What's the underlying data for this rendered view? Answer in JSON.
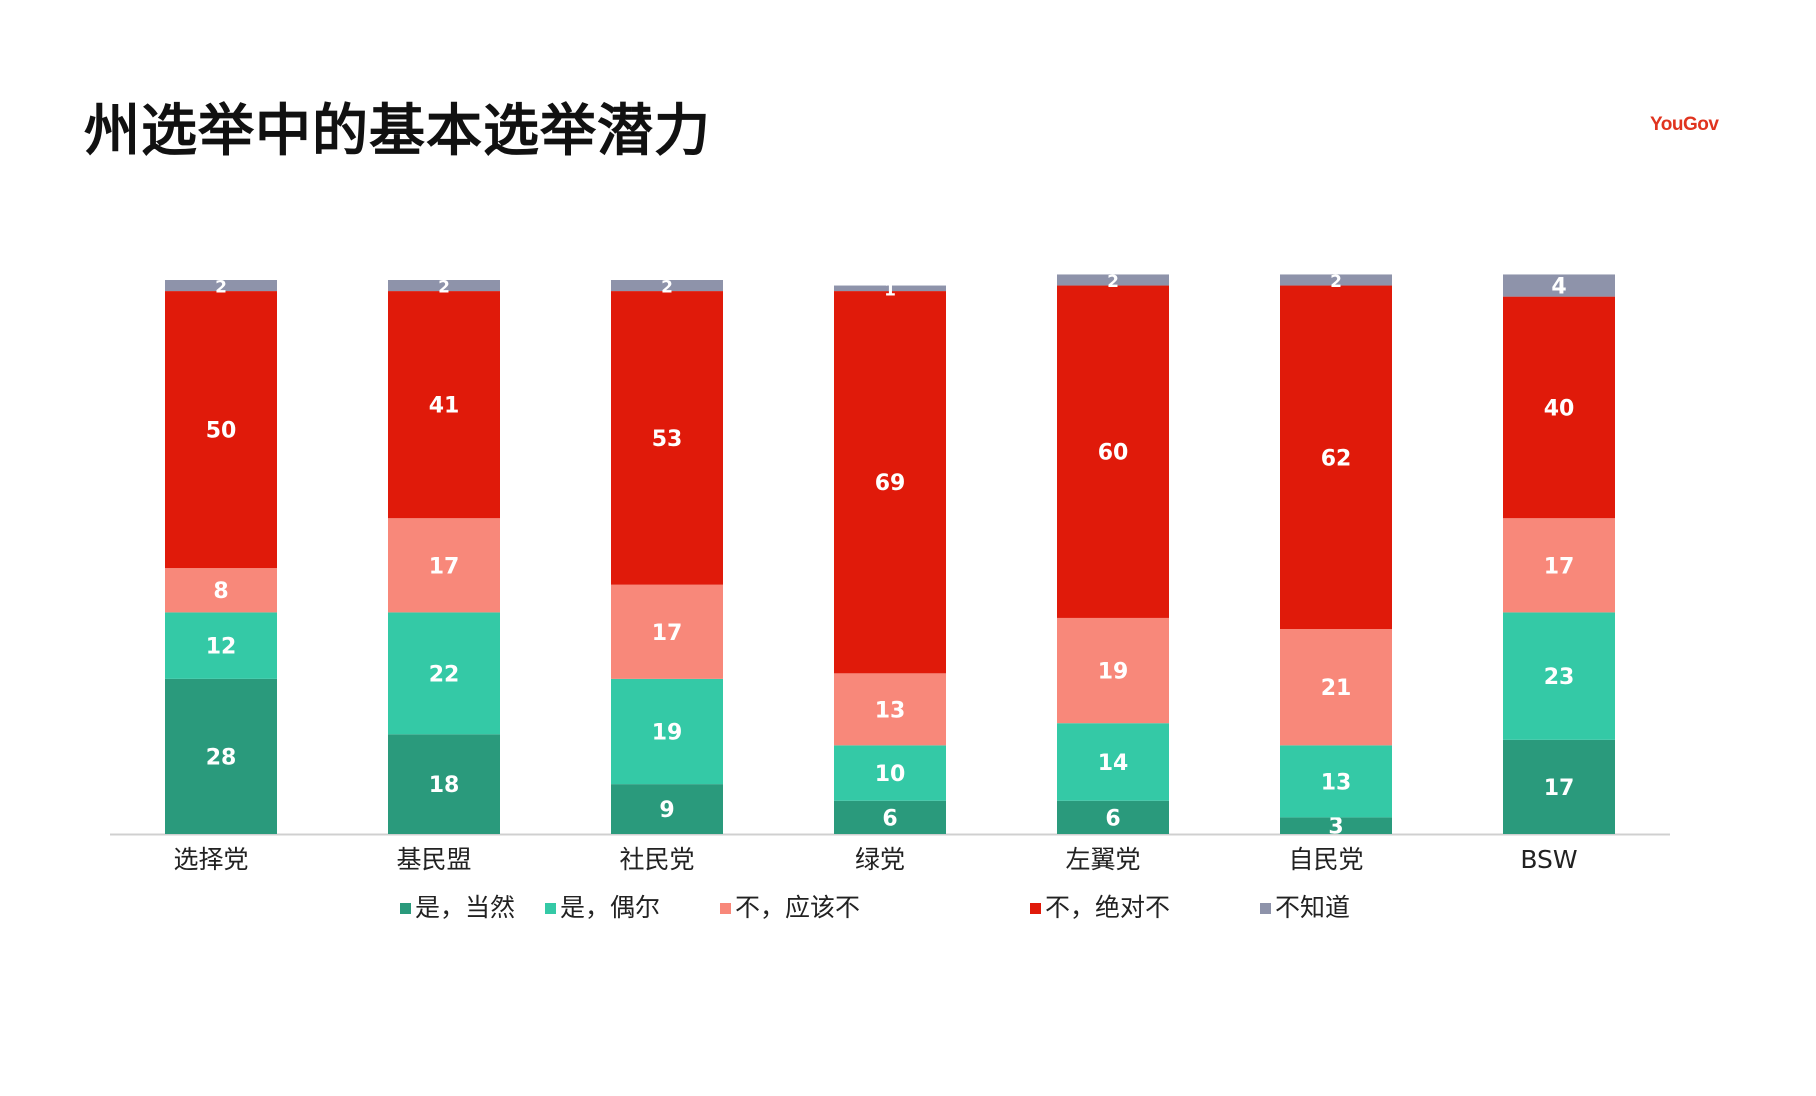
{
  "header": {
    "title": "州选举中的基本选举潜力",
    "brand": "YouGov"
  },
  "colors": {
    "definitely": "#2a9a7c",
    "occasionally": "#34c9a6",
    "should_not": "#f8887a",
    "absolutely_not": "#e01a0a",
    "dont_know": "#8e93aa"
  },
  "chart_data": {
    "type": "bar",
    "stacked": true,
    "categories": [
      "选择党",
      "基民盟",
      "社民党",
      "绿党",
      "左翼党",
      "自民党",
      "BSW"
    ],
    "series": [
      {
        "name": "是，当然",
        "color": "#2a9a7c",
        "values": [
          28,
          18,
          9,
          6,
          6,
          3,
          17
        ]
      },
      {
        "name": "是，偶尔",
        "color": "#34c9a6",
        "values": [
          12,
          22,
          19,
          10,
          14,
          13,
          23
        ]
      },
      {
        "name": "不，应该不",
        "color": "#f8887a",
        "values": [
          8,
          17,
          17,
          13,
          19,
          21,
          17
        ]
      },
      {
        "name": "不，绝对不",
        "color": "#e01a0a",
        "values": [
          50,
          41,
          53,
          69,
          60,
          62,
          40
        ]
      },
      {
        "name": "不知道",
        "color": "#8e93aa",
        "values": [
          2,
          2,
          2,
          1,
          2,
          2,
          4
        ]
      }
    ],
    "ylim": [
      0,
      100
    ],
    "grid": false,
    "legend_position": "bottom"
  }
}
